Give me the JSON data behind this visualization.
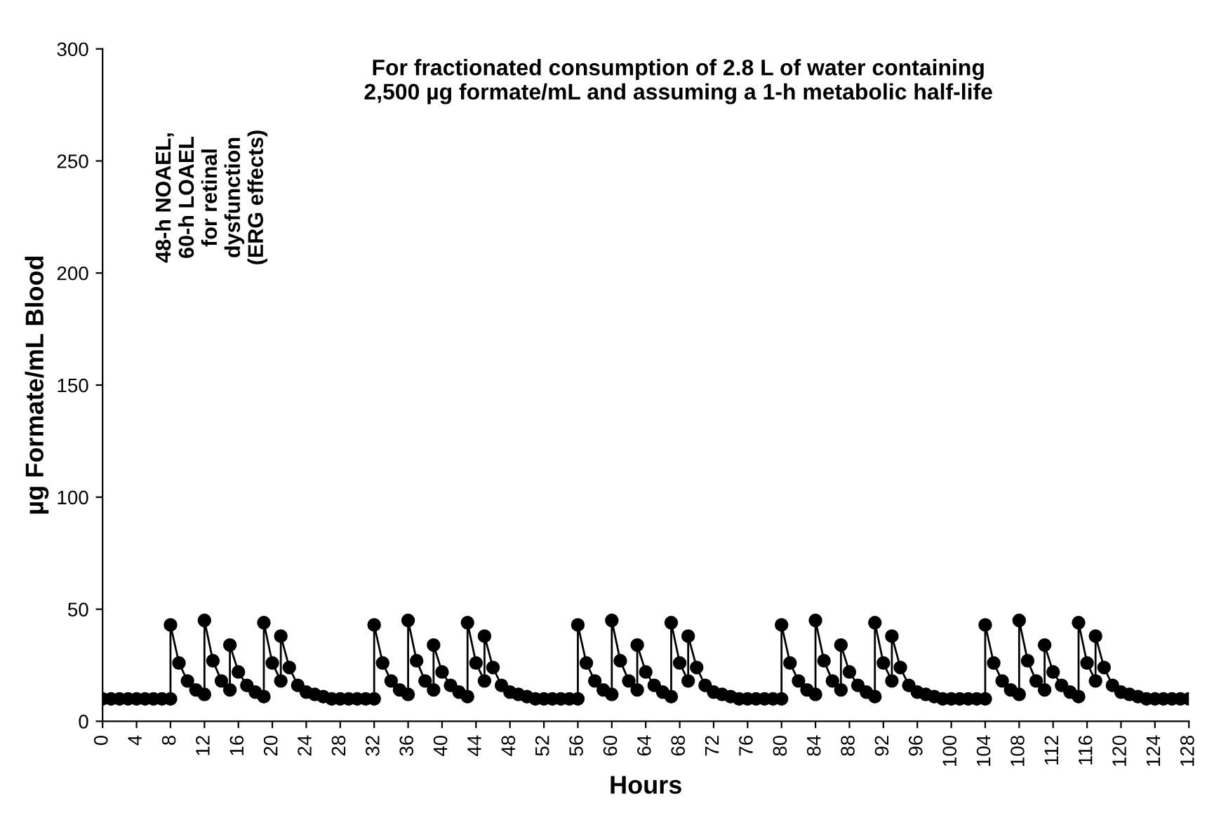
{
  "chart_data": {
    "type": "line",
    "title": "For fractionated consumption of 2.8 L of water containing\n2,500 µg formate/mL and assuming a 1-h metabolic half-life",
    "xlabel": "Hours",
    "ylabel": "µg Formate/mL Blood",
    "annotations": [
      "48-h NOAEL,\n60-h LOAEL\nfor retinal\ndysfunction\n(ERG effects)"
    ],
    "series": [
      {
        "color": "#000000",
        "x": [
          0,
          1,
          2,
          3,
          4,
          5,
          6,
          7,
          8,
          8,
          9,
          10,
          11,
          12,
          12,
          13,
          14,
          15,
          15,
          16,
          17,
          18,
          19,
          19,
          20,
          21,
          21,
          22,
          23,
          24,
          25,
          26,
          27,
          28,
          29,
          30,
          31,
          32,
          32,
          33,
          34,
          35,
          36,
          36,
          37,
          38,
          39,
          39,
          40,
          41,
          42,
          43,
          43,
          44,
          45,
          45,
          46,
          47,
          48,
          49,
          50,
          51,
          52,
          53,
          54,
          55,
          56,
          56,
          57,
          58,
          59,
          60,
          60,
          61,
          62,
          63,
          63,
          64,
          65,
          66,
          67,
          67,
          68,
          69,
          69,
          70,
          71,
          72,
          73,
          74,
          75,
          76,
          77,
          78,
          79,
          80,
          80,
          81,
          82,
          83,
          84,
          84,
          85,
          86,
          87,
          87,
          88,
          89,
          90,
          91,
          91,
          92,
          93,
          93,
          94,
          95,
          96,
          97,
          98,
          99,
          100,
          101,
          102,
          103,
          104,
          104,
          105,
          106,
          107,
          108,
          108,
          109,
          110,
          111,
          111,
          112,
          113,
          114,
          115,
          115,
          116,
          117,
          117,
          118,
          119,
          120,
          121,
          122,
          123,
          124,
          125,
          126,
          127,
          128
        ],
        "values": [
          10,
          10,
          10,
          10,
          10,
          10,
          10,
          10,
          10,
          43,
          26,
          18,
          14,
          12,
          45,
          27,
          18,
          14,
          34,
          22,
          16,
          13,
          11,
          44,
          26,
          18,
          38,
          24,
          16,
          13,
          12,
          11,
          10,
          10,
          10,
          10,
          10,
          10,
          43,
          26,
          18,
          14,
          12,
          45,
          27,
          18,
          14,
          34,
          22,
          16,
          13,
          11,
          44,
          26,
          18,
          38,
          24,
          16,
          13,
          12,
          11,
          10,
          10,
          10,
          10,
          10,
          10,
          43,
          26,
          18,
          14,
          12,
          45,
          27,
          18,
          14,
          34,
          22,
          16,
          13,
          11,
          44,
          26,
          18,
          38,
          24,
          16,
          13,
          12,
          11,
          10,
          10,
          10,
          10,
          10,
          10,
          43,
          26,
          18,
          14,
          12,
          45,
          27,
          18,
          14,
          34,
          22,
          16,
          13,
          11,
          44,
          26,
          18,
          38,
          24,
          16,
          13,
          12,
          11,
          10,
          10,
          10,
          10,
          10,
          10,
          43,
          26,
          18,
          14,
          12,
          45,
          27,
          18,
          14,
          34,
          22,
          16,
          13,
          11,
          44,
          26,
          18,
          38,
          24,
          16,
          13,
          12,
          11,
          10,
          10,
          10,
          10,
          10,
          10
        ]
      }
    ],
    "xlim": [
      0,
      128
    ],
    "xticks": [
      0,
      4,
      8,
      12,
      16,
      20,
      24,
      28,
      32,
      36,
      40,
      44,
      48,
      52,
      56,
      60,
      64,
      68,
      72,
      76,
      80,
      84,
      88,
      92,
      96,
      100,
      104,
      108,
      112,
      116,
      120,
      124,
      128
    ],
    "ylim": [
      0,
      300
    ],
    "yticks": [
      0,
      50,
      100,
      150,
      200,
      250,
      300
    ],
    "marker": "circle",
    "line_style": "solid",
    "grid": false,
    "legend": false
  }
}
